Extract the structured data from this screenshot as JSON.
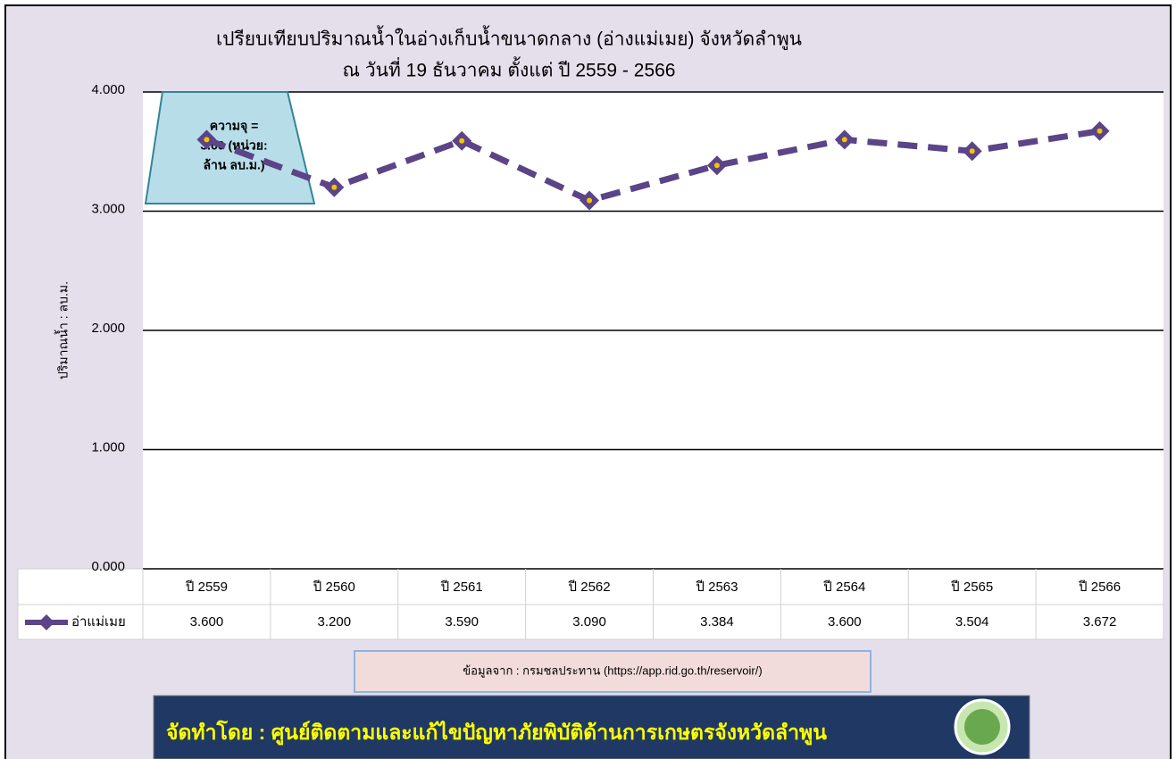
{
  "chart_data": {
    "type": "line",
    "title": "เปรียบเทียบปริมาณน้ำในอ่างเก็บน้ำขนาดกลาง (อ่างแม่เมย) จังหวัดลำพูน",
    "subtitle": "ณ วันที่ 19 ธันวาคม ตั้งแต่ ปี 2559 - 2566",
    "y_label": "ปริมาณน้ำ : ลบ.ม.",
    "categories": [
      "ปี 2559",
      "ปี 2560",
      "ปี 2561",
      "ปี 2562",
      "ปี 2563",
      "ปี 2564",
      "ปี 2565",
      "ปี 2566"
    ],
    "series": [
      {
        "name": "อ่าแม่เมย",
        "color": "#5b4487",
        "values": [
          3.6,
          3.2,
          3.59,
          3.09,
          3.384,
          3.6,
          3.504,
          3.672
        ],
        "value_labels": [
          "3.600",
          "3.200",
          "3.590",
          "3.090",
          "3.384",
          "3.600",
          "3.504",
          "3.672"
        ]
      }
    ],
    "ylim": [
      0,
      4
    ],
    "yticks": [
      {
        "value": 0,
        "label": "0.000"
      },
      {
        "value": 1,
        "label": "1.000"
      },
      {
        "value": 2,
        "label": "2.000"
      },
      {
        "value": 3,
        "label": "3.000"
      },
      {
        "value": 4,
        "label": "4.000"
      }
    ],
    "grid": true,
    "annotation": [
      "ความจุ =",
      "3.60 (หน่วย:",
      "ล้าน ลบ.ม.)"
    ]
  },
  "source": "ข้อมูลจาก : กรมชลประทาน (https://app.rid.go.th/reservoir/)",
  "footer": "จัดทำโดย : ศูนย์ติดตามและแก้ไขปัญหาภัยพิบัติด้านการเกษตรจังหวัดลำพูน"
}
